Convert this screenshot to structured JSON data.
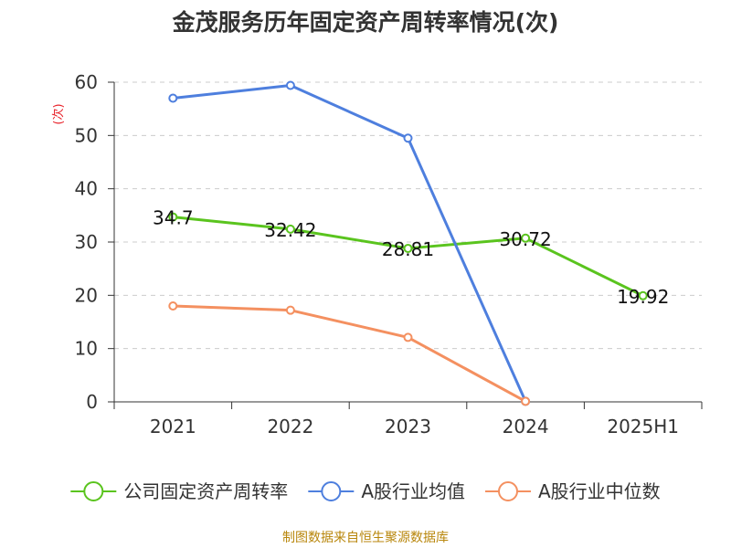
{
  "chart_data": {
    "type": "line",
    "title": "金茂服务历年固定资产周转率情况(次)",
    "ylabel": "(次)",
    "xlabel": "",
    "categories": [
      "2021",
      "2022",
      "2023",
      "2024",
      "2025H1"
    ],
    "ylim": [
      0,
      60
    ],
    "yticks": [
      0,
      10,
      20,
      30,
      40,
      50,
      60
    ],
    "grid": true,
    "legend_position": "bottom",
    "series": [
      {
        "name": "公司固定资产周转率",
        "color": "#5ac41e",
        "values": [
          34.7,
          32.42,
          28.81,
          30.72,
          19.92
        ],
        "labels": [
          "34.7",
          "32.42",
          "28.81",
          "30.72",
          "19.92"
        ]
      },
      {
        "name": "A股行业均值",
        "color": "#4e7fde",
        "values": [
          57.0,
          59.4,
          49.5,
          0.1,
          null
        ],
        "labels": []
      },
      {
        "name": "A股行业中位数",
        "color": "#f49060",
        "values": [
          18.0,
          17.2,
          12.1,
          0.1,
          null
        ],
        "labels": []
      }
    ]
  },
  "footer": {
    "source": "制图数据来自恒生聚源数据库"
  }
}
